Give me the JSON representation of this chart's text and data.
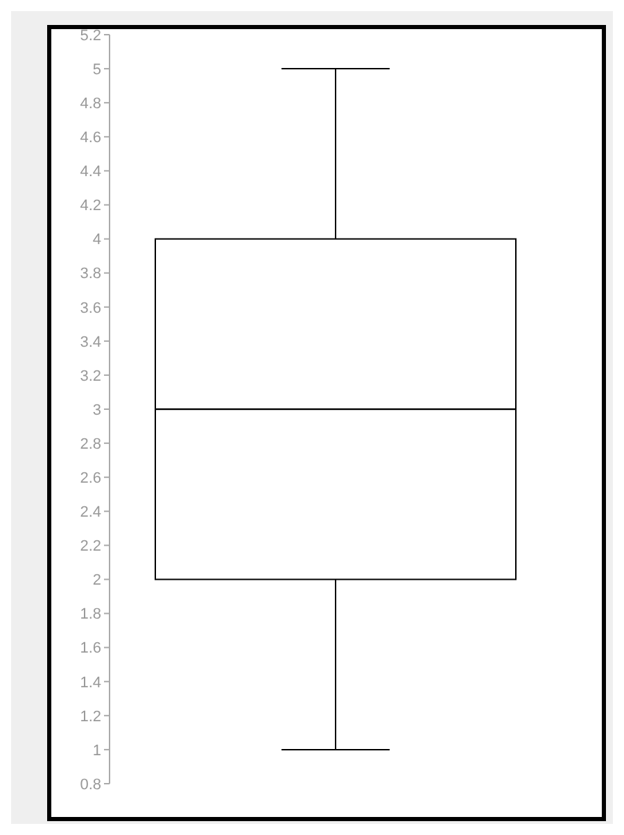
{
  "chart_data": {
    "type": "box",
    "categories": [
      null
    ],
    "boxes": [
      {
        "low": 1,
        "q1": 2,
        "median": 3,
        "q3": 4,
        "high": 5
      }
    ],
    "color": "#000000",
    "ylim": [
      0.8,
      5.2
    ],
    "yticks": [
      0.8,
      1,
      1.2,
      1.4,
      1.6,
      1.8,
      2,
      2.2,
      2.4,
      2.6,
      2.8,
      3,
      3.2,
      3.4,
      3.6,
      3.8,
      4,
      4.2,
      4.4,
      4.6,
      4.8,
      5,
      5.2
    ],
    "grid": false,
    "legend": false
  }
}
